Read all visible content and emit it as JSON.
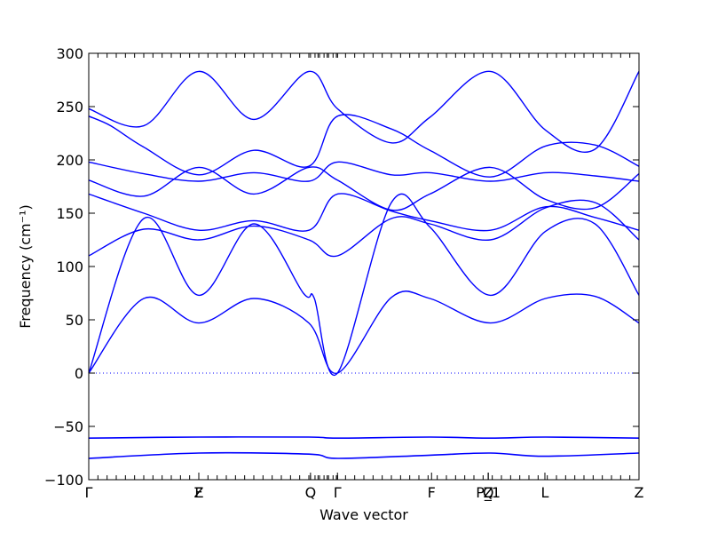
{
  "chart_data": {
    "type": "line",
    "xlabel": "Wave vector",
    "ylabel": "Frequency",
    "ylabel_unit_tex": "(cm⁻¹)",
    "ylim": [
      -100,
      300
    ],
    "xlim": [
      0,
      1
    ],
    "yticks": [
      -100,
      -50,
      0,
      50,
      100,
      150,
      200,
      250,
      300
    ],
    "ytick_labels": [
      "−100",
      "−50",
      "0",
      "50",
      "100",
      "150",
      "200",
      "250",
      "300"
    ],
    "special_points": [
      {
        "label": "Γ",
        "x": 0.0
      },
      {
        "label": "Z",
        "x": 0.2
      },
      {
        "label": "F",
        "x": 0.2
      },
      {
        "label": "Q",
        "x": 0.403
      },
      {
        "label": "Γ",
        "x": 0.452
      },
      {
        "label": "F",
        "x": 0.623
      },
      {
        "label": "P_1",
        "x": 0.726
      },
      {
        "label": "Q",
        "x": 0.726
      },
      {
        "label": "Z",
        "x": 0.726
      },
      {
        "label": "L",
        "x": 0.829
      },
      {
        "label": "Z",
        "x": 1.0
      }
    ],
    "zero_line": true,
    "grid": false,
    "series": [
      {
        "x": [
          0,
          0.1,
          0.2,
          0.3,
          0.4,
          0.452,
          0.55,
          0.62,
          0.73,
          0.83,
          0.92,
          1.0
        ],
        "y": [
          248,
          232,
          283,
          238,
          283,
          248,
          216,
          240,
          283,
          228,
          210,
          283
        ]
      },
      {
        "x": [
          0,
          0.04,
          0.1,
          0.2,
          0.3,
          0.4,
          0.452,
          0.55,
          0.62,
          0.73,
          0.83,
          0.92,
          1.0
        ],
        "y": [
          241,
          232,
          212,
          186,
          209,
          194,
          241,
          229,
          209,
          184,
          213,
          214,
          194
        ]
      },
      {
        "x": [
          0,
          0.1,
          0.2,
          0.3,
          0.4,
          0.452,
          0.55,
          0.62,
          0.73,
          0.83,
          0.92,
          1.0
        ],
        "y": [
          198,
          187,
          180,
          188,
          180,
          198,
          186,
          188,
          180,
          188,
          185,
          180
        ]
      },
      {
        "x": [
          0,
          0.1,
          0.2,
          0.3,
          0.4,
          0.452,
          0.55,
          0.62,
          0.73,
          0.83,
          0.92,
          1.0
        ],
        "y": [
          181,
          166,
          193,
          168,
          193,
          181,
          153,
          168,
          193,
          163,
          155,
          187
        ]
      },
      {
        "x": [
          0,
          0.1,
          0.2,
          0.3,
          0.4,
          0.452,
          0.55,
          0.62,
          0.73,
          0.83,
          0.92,
          1.0
        ],
        "y": [
          168,
          150,
          134,
          143,
          134,
          168,
          152,
          143,
          134,
          156,
          146,
          134
        ]
      },
      {
        "x": [
          0,
          0.1,
          0.2,
          0.3,
          0.4,
          0.452,
          0.55,
          0.62,
          0.73,
          0.83,
          0.92,
          1.0
        ],
        "y": [
          110,
          135,
          125,
          138,
          125,
          110,
          145,
          140,
          125,
          155,
          160,
          125
        ]
      },
      {
        "x": [
          0,
          0.1,
          0.2,
          0.3,
          0.39,
          0.41,
          0.452,
          0.55,
          0.62,
          0.73,
          0.83,
          0.92,
          1.0
        ],
        "y": [
          0,
          145,
          73,
          140,
          75,
          70,
          0,
          160,
          137,
          73,
          133,
          140,
          73
        ]
      },
      {
        "x": [
          0,
          0.1,
          0.2,
          0.3,
          0.4,
          0.452,
          0.55,
          0.62,
          0.73,
          0.83,
          0.92,
          1.0
        ],
        "y": [
          0,
          70,
          47,
          70,
          47,
          0,
          71,
          70,
          47,
          70,
          72,
          47
        ]
      },
      {
        "x": [
          0,
          0.2,
          0.4,
          0.452,
          0.62,
          0.73,
          0.83,
          1.0
        ],
        "y": [
          -61,
          -60,
          -60,
          -61,
          -60,
          -61,
          -60,
          -61
        ]
      },
      {
        "x": [
          0,
          0.2,
          0.4,
          0.452,
          0.62,
          0.73,
          0.83,
          1.0
        ],
        "y": [
          -80,
          -75,
          -76,
          -80,
          -77,
          -75,
          -78,
          -75
        ]
      }
    ]
  }
}
